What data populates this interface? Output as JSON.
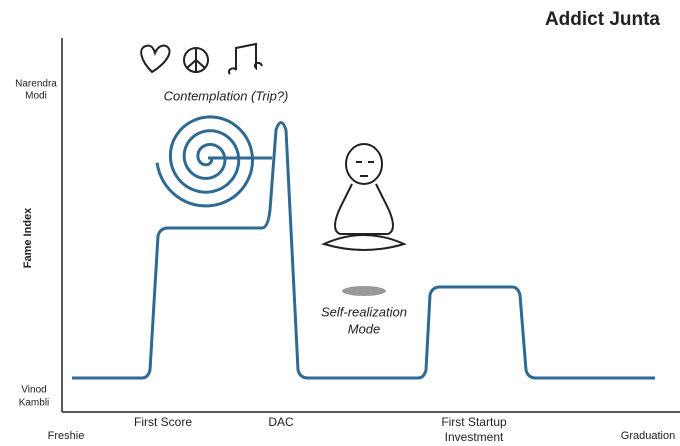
{
  "title": "Addict Junta",
  "y_axis": {
    "label": "Fame Index",
    "top": [
      "Narendra",
      "Modi"
    ],
    "bottom": [
      "Vinod",
      "Kambli"
    ]
  },
  "x_axis": {
    "start": "Freshie",
    "end": "Graduation"
  },
  "milestones": [
    "First Score",
    "DAC",
    [
      "First Startup",
      "Investment"
    ]
  ],
  "annotations": {
    "contemplation": "Contemplation (Trip?)",
    "self_realization": [
      "Self-realization",
      "Mode"
    ]
  }
}
